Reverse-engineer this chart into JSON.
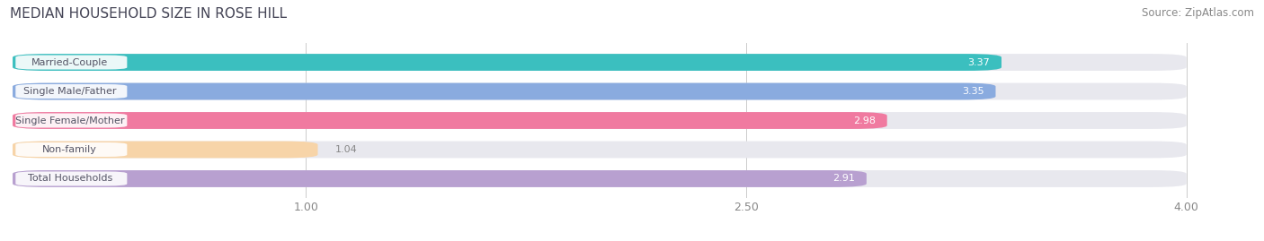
{
  "title": "MEDIAN HOUSEHOLD SIZE IN ROSE HILL",
  "source": "Source: ZipAtlas.com",
  "categories": [
    "Married-Couple",
    "Single Male/Father",
    "Single Female/Mother",
    "Non-family",
    "Total Households"
  ],
  "values": [
    3.37,
    3.35,
    2.98,
    1.04,
    2.91
  ],
  "bar_colors": [
    "#3bbfbf",
    "#8aabdf",
    "#f07aa0",
    "#f7d4a8",
    "#b8a0d0"
  ],
  "track_color": "#e8e8ee",
  "xlim": [
    0.0,
    4.2
  ],
  "xmin": 0.0,
  "xmax": 4.0,
  "xticks": [
    1.0,
    2.5,
    4.0
  ],
  "title_fontsize": 11,
  "source_fontsize": 8.5,
  "label_fontsize": 8,
  "value_fontsize": 8,
  "bar_height": 0.58,
  "background_color": "#ffffff",
  "label_box_color": "#ffffff",
  "label_text_color": "#555566",
  "value_color_inside": "#ffffff",
  "value_color_outside": "#888888"
}
